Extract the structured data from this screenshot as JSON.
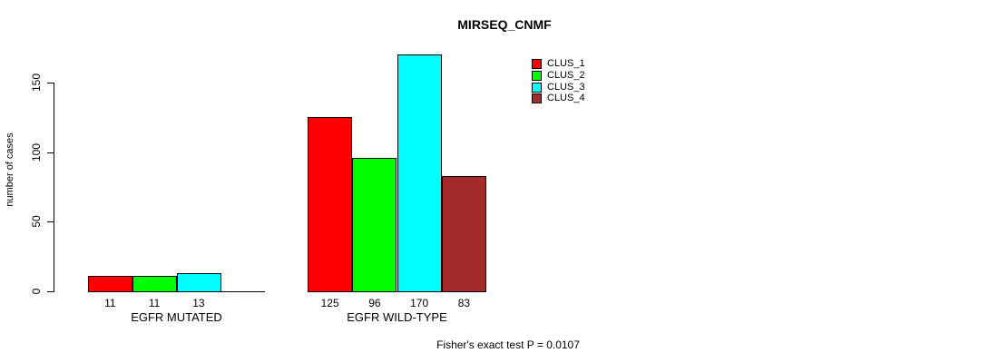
{
  "chart_data": {
    "type": "bar",
    "title": "MIRSEQ_CNMF",
    "xlabel": "",
    "ylabel": "number of cases",
    "annotation": "Fisher's exact test P = 0.0107",
    "categories": [
      "EGFR MUTATED",
      "EGFR WILD-TYPE"
    ],
    "series": [
      {
        "name": "CLUS_1",
        "color": "#ff0000",
        "values": [
          11,
          125
        ]
      },
      {
        "name": "CLUS_2",
        "color": "#00ff00",
        "values": [
          11,
          96
        ]
      },
      {
        "name": "CLUS_3",
        "color": "#00ffff",
        "values": [
          13,
          170
        ]
      },
      {
        "name": "CLUS_4",
        "color": "#a52a2a",
        "values": [
          null,
          83
        ]
      }
    ],
    "bar_value_labels": [
      [
        "11",
        "11",
        "13",
        null
      ],
      [
        "125",
        "96",
        "170",
        "83"
      ]
    ],
    "yticks": [
      0,
      50,
      100,
      150
    ],
    "ylim": [
      0,
      172
    ],
    "grid": false,
    "legend_position": "top-right",
    "axis_color": "#000000",
    "text_color": "#000000"
  }
}
